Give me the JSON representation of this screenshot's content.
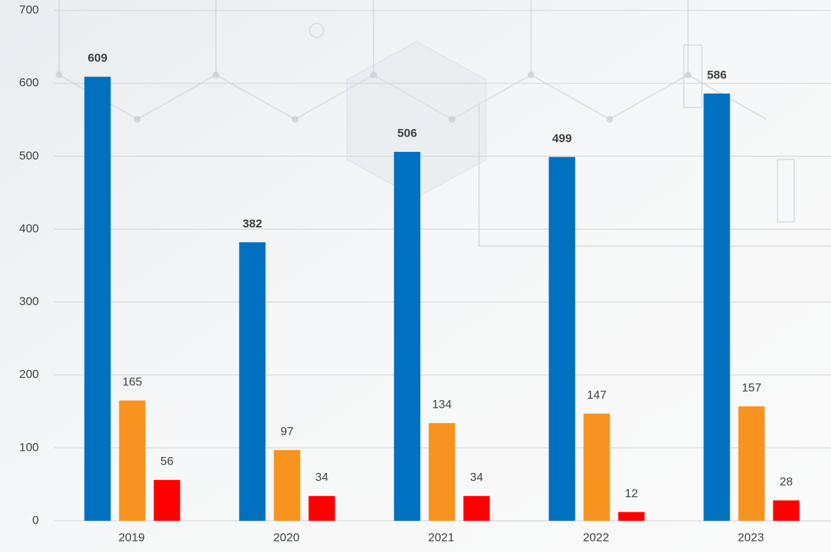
{
  "chart_data": {
    "type": "bar",
    "categories": [
      "2019",
      "2020",
      "2021",
      "2022",
      "2023"
    ],
    "series": [
      {
        "color": "#0070c0",
        "values": [
          609,
          382,
          506,
          499,
          586
        ]
      },
      {
        "color": "#f7931e",
        "values": [
          165,
          97,
          134,
          147,
          157
        ]
      },
      {
        "color": "#ff0000",
        "values": [
          56,
          34,
          34,
          12,
          28
        ]
      }
    ],
    "ylim": [
      0,
      700
    ],
    "yticks": [
      0,
      100,
      200,
      300,
      400,
      500,
      600,
      700
    ],
    "grid": true
  }
}
